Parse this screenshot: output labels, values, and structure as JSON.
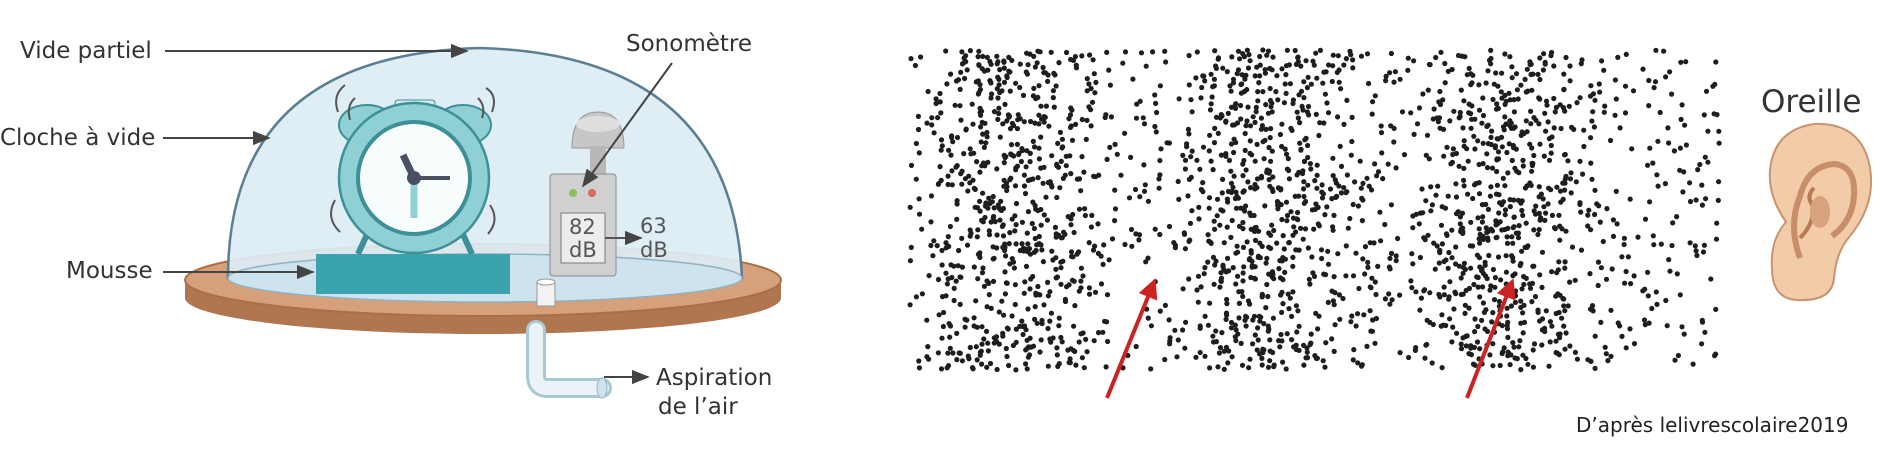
{
  "left_diagram": {
    "labels": {
      "vide_partiel": "Vide partiel",
      "cloche": "Cloche à vide",
      "mousse": "Mousse",
      "sonometre": "Sonomètre",
      "aspiration_1": "Aspiration",
      "aspiration_2": "de l’air"
    },
    "meter_value": "82",
    "meter_unit": "dB",
    "outside_value": "63",
    "outside_unit": "dB"
  },
  "right_diagram": {
    "ear_label": "Oreille",
    "credit": "D’après lelivrescolaire2019"
  },
  "colors": {
    "bell_fill": "#dcecf4",
    "bell_stroke": "#5a7f93",
    "base": "#c88d65",
    "foam": "#3ba3ad",
    "clock": "#8fd0d4",
    "particle": "#1e1e1e",
    "arrow_red": "#cc2222",
    "skin": "#f2cba9"
  }
}
